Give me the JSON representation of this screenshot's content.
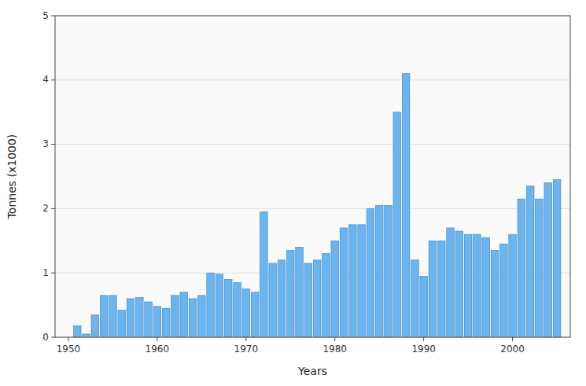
{
  "chart_data": {
    "type": "bar",
    "x": [
      1950,
      1951,
      1952,
      1953,
      1954,
      1955,
      1956,
      1957,
      1958,
      1959,
      1960,
      1961,
      1962,
      1963,
      1964,
      1965,
      1966,
      1967,
      1968,
      1969,
      1970,
      1971,
      1972,
      1973,
      1974,
      1975,
      1976,
      1977,
      1978,
      1979,
      1980,
      1981,
      1982,
      1983,
      1984,
      1985,
      1986,
      1987,
      1988,
      1989,
      1990,
      1991,
      1992,
      1993,
      1994,
      1995,
      1996,
      1997,
      1998,
      1999,
      2000,
      2001,
      2002,
      2003,
      2004,
      2005
    ],
    "values": [
      0.0,
      0.18,
      0.05,
      0.35,
      0.65,
      0.65,
      0.42,
      0.6,
      0.62,
      0.55,
      0.48,
      0.45,
      0.65,
      0.7,
      0.6,
      0.65,
      1.0,
      0.98,
      0.9,
      0.85,
      0.75,
      0.7,
      1.95,
      1.15,
      1.2,
      1.35,
      1.4,
      1.15,
      1.2,
      1.3,
      1.5,
      1.7,
      1.75,
      1.75,
      2.0,
      2.05,
      2.05,
      3.5,
      4.1,
      1.2,
      0.95,
      1.5,
      1.5,
      1.7,
      1.65,
      1.6,
      1.6,
      1.55,
      1.35,
      1.45,
      1.6,
      2.15,
      2.35,
      2.15,
      2.4,
      2.45
    ],
    "color": "#6ab4f0",
    "xlabel": "Years",
    "ylabel": "Tonnes (x1000)",
    "xlim": [
      1948.5,
      2006.5
    ],
    "xticks": [
      1950,
      1960,
      1970,
      1980,
      1990,
      2000
    ],
    "ylim": [
      0,
      5
    ],
    "yticks": [
      0,
      1,
      2,
      3,
      4,
      5
    ],
    "grid": true
  }
}
